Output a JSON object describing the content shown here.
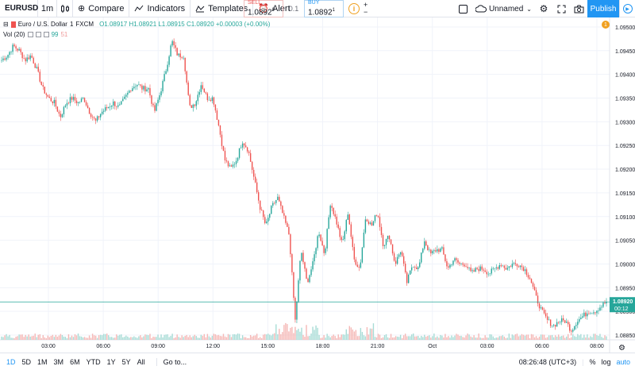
{
  "toolbar": {
    "symbol": "EURUSD",
    "interval": "1m",
    "compare": "Compare",
    "indicators": "Indicators",
    "templates": "Templates",
    "alert": "Alert"
  },
  "trade": {
    "sell_label": "SELL",
    "sell_price": "1.0892",
    "sell_super": "0",
    "spread": "0.1",
    "buy_label": "BUY",
    "buy_price": "1.0892",
    "buy_super": "1"
  },
  "right_toolbar": {
    "layout_name": "Unnamed",
    "publish": "Publish"
  },
  "legend": {
    "title": "Euro / U.S. Dollar",
    "interval": "1",
    "exchange": "FXCM",
    "ohlc": "O1.08917  H1.08921  L1.08915  C1.08920  +0.00003 (+0.00%)",
    "vol_label": "Vol (20)",
    "vol_value1": "99",
    "vol_value2": "51"
  },
  "colors": {
    "up": "#26a69a",
    "down": "#ef5350",
    "accent": "#2196f3",
    "price_line": "#26a69a"
  },
  "bottom": {
    "ranges": [
      "1D",
      "5D",
      "1M",
      "3M",
      "6M",
      "YTD",
      "1Y",
      "5Y",
      "All"
    ],
    "goto": "Go to...",
    "clock": "08:26:48 (UTC+3)",
    "percent": "%",
    "log": "log",
    "auto": "auto"
  },
  "chart_data": {
    "type": "candlestick",
    "price_ticks": [
      "1.09500",
      "1.09450",
      "1.09400",
      "1.09350",
      "1.09300",
      "1.09250",
      "1.09200",
      "1.09150",
      "1.09100",
      "1.09050",
      "1.09000",
      "1.08950",
      "1.08900",
      "1.08850"
    ],
    "time_ticks": [
      "03:00",
      "06:00",
      "09:00",
      "12:00",
      "15:00",
      "18:00",
      "21:00",
      "Oct",
      "03:00",
      "06:00",
      "08:00"
    ],
    "ylim": [
      1.0884,
      1.0952
    ],
    "current_price": "1.08920",
    "countdown": "00:12",
    "close_series": [
      1.0943,
      1.0944,
      1.0946,
      1.0945,
      1.0943,
      1.0944,
      1.0941,
      1.0937,
      1.0935,
      1.0934,
      1.0931,
      1.0934,
      1.0935,
      1.0934,
      1.0935,
      1.0932,
      1.093,
      1.0932,
      1.0933,
      1.0934,
      1.0933,
      1.0935,
      1.0937,
      1.0938,
      1.0937,
      1.0937,
      1.0932,
      1.0936,
      1.0941,
      1.0947,
      1.0944,
      1.0944,
      1.0933,
      1.0934,
      1.0938,
      1.0935,
      1.0935,
      1.0929,
      1.0922,
      1.092,
      1.0922,
      1.0926,
      1.0924,
      1.0918,
      1.0912,
      1.0908,
      1.0912,
      1.0914,
      1.091,
      1.0906,
      1.0888,
      1.0903,
      1.0896,
      1.09,
      1.0907,
      1.0902,
      1.0913,
      1.0909,
      1.0904,
      1.0911,
      1.0901,
      1.0899,
      1.091,
      1.0908,
      1.0911,
      1.0904,
      1.0906,
      1.09,
      1.0903,
      1.0896,
      1.09,
      1.0899,
      1.0905,
      1.0902,
      1.0903,
      1.0903,
      1.0899,
      1.0901,
      1.09,
      1.09,
      1.0898,
      1.0899,
      1.0899,
      1.0898,
      1.0899,
      1.09,
      1.0899,
      1.09,
      1.09,
      1.0899,
      1.0897,
      1.0893,
      1.089,
      1.0888,
      1.0887,
      1.0888,
      1.0888,
      1.0886,
      1.0888,
      1.0889,
      1.089,
      1.089,
      1.0891,
      1.0892
    ]
  }
}
